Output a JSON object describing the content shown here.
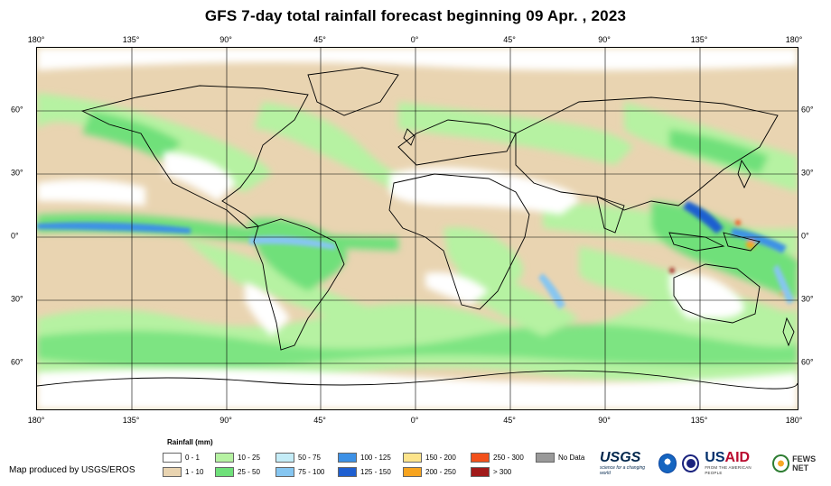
{
  "title": "GFS 7-day total rainfall forecast beginning 09 Apr. , 2023",
  "axes": {
    "longitude_labels": [
      "180°",
      "135°",
      "90°",
      "45°",
      "0°",
      "45°",
      "90°",
      "135°",
      "180°"
    ],
    "latitude_labels": [
      "60°",
      "30°",
      "0°",
      "30°",
      "60°"
    ]
  },
  "legend": {
    "title": "Rainfall (mm)",
    "items": [
      {
        "label": "0 - 1",
        "color": "#ffffff"
      },
      {
        "label": "1 - 10",
        "color": "#e9d4b1"
      },
      {
        "label": "10 - 25",
        "color": "#b6f2a2"
      },
      {
        "label": "25 - 50",
        "color": "#6fe07a"
      },
      {
        "label": "50 - 75",
        "color": "#c4ecf7"
      },
      {
        "label": "75 - 100",
        "color": "#86c6f1"
      },
      {
        "label": "100 - 125",
        "color": "#3d91e6"
      },
      {
        "label": "125 - 150",
        "color": "#1f5fd0"
      },
      {
        "label": "150 - 200",
        "color": "#fde48b"
      },
      {
        "label": "200 - 250",
        "color": "#f7a41f"
      },
      {
        "label": "250 - 300",
        "color": "#f2501b"
      },
      {
        "label": "> 300",
        "color": "#a11a1a"
      },
      {
        "label": "No Data",
        "color": "#999999"
      }
    ]
  },
  "producer": "Map produced by USGS/EROS",
  "logos": {
    "usgs": "USGS",
    "usgs_tagline": "science for a changing world",
    "usaid_us": "US",
    "usaid_aid": "AID",
    "usaid_tagline": "FROM THE AMERICAN PEOPLE",
    "fews": "FEWS NET"
  }
}
